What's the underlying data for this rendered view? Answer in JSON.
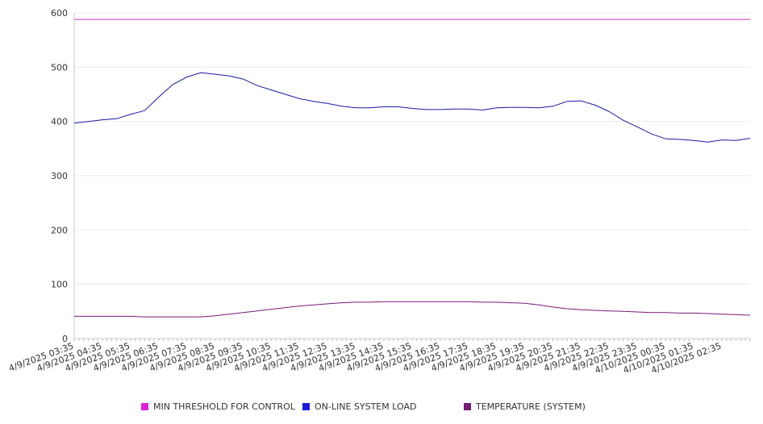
{
  "chart_data": {
    "type": "line",
    "title": "",
    "xlabel": "",
    "ylabel": "",
    "ylim": [
      0,
      600
    ],
    "yticks": [
      0,
      100,
      200,
      300,
      400,
      500,
      600
    ],
    "grid": true,
    "legend_position": "bottom",
    "xtick_labels": [
      "4/9/2025 03:35",
      "4/9/2025 04:35",
      "4/9/2025 05:35",
      "4/9/2025 06:35",
      "4/9/2025 07:35",
      "4/9/2025 08:35",
      "4/9/2025 09:35",
      "4/9/2025 10:35",
      "4/9/2025 11:35",
      "4/9/2025 12:35",
      "4/9/2025 13:35",
      "4/9/2025 14:35",
      "4/9/2025 15:35",
      "4/9/2025 16:35",
      "4/9/2025 17:35",
      "4/9/2025 18:35",
      "4/9/2025 19:35",
      "4/9/2025 20:35",
      "4/9/2025 21:35",
      "4/9/2025 22:35",
      "4/9/2025 23:35",
      "4/10/2025 00:35",
      "4/10/2025 01:35",
      "4/10/2025 02:35"
    ],
    "x_hours": [
      0,
      0.5,
      1,
      1.5,
      2,
      2.5,
      3,
      3.5,
      4,
      4.5,
      5,
      5.5,
      6,
      6.5,
      7,
      7.5,
      8,
      8.5,
      9,
      9.5,
      10,
      10.5,
      11,
      11.5,
      12,
      12.5,
      13,
      13.5,
      14,
      14.5,
      15,
      15.5,
      16,
      16.5,
      17,
      17.5,
      18,
      18.5,
      19,
      19.5,
      20,
      20.5,
      21,
      21.5,
      22,
      22.5,
      23,
      23.5,
      24
    ],
    "series": [
      {
        "name": "MIN THRESHOLD FOR CONTROL",
        "color": "#cc33cc",
        "values": [
          588,
          588,
          588,
          588,
          588,
          588,
          588,
          588,
          588,
          588,
          588,
          588,
          588,
          588,
          588,
          588,
          588,
          588,
          588,
          588,
          588,
          588,
          588,
          588,
          588,
          588,
          588,
          588,
          588,
          588,
          588,
          588,
          588,
          588,
          588,
          588,
          588,
          588,
          588,
          588,
          588,
          588,
          588,
          588,
          588,
          588,
          588,
          588,
          588
        ]
      },
      {
        "name": "ON-LINE SYSTEM LOAD",
        "color": "#1a1aaa",
        "values": [
          397,
          400,
          403,
          405,
          413,
          420,
          445,
          468,
          482,
          490,
          487,
          484,
          478,
          466,
          458,
          450,
          442,
          437,
          433,
          428,
          425,
          425,
          427,
          427,
          424,
          422,
          422,
          423,
          423,
          421,
          425,
          426,
          426,
          425,
          428,
          437,
          438,
          430,
          418,
          402,
          390,
          377,
          368,
          367,
          365,
          362,
          366,
          365,
          369
        ]
      },
      {
        "name": "TEMPERATURE (SYSTEM)",
        "color": "#7a1a7a",
        "values": [
          41,
          41,
          41,
          41,
          41,
          40,
          40,
          40,
          40,
          40,
          42,
          45,
          48,
          51,
          54,
          57,
          60,
          62,
          64,
          66,
          67,
          67,
          68,
          68,
          68,
          68,
          68,
          68,
          68,
          67,
          67,
          66,
          65,
          62,
          58,
          55,
          53,
          52,
          51,
          50,
          49,
          48,
          48,
          47,
          47,
          46,
          45,
          44,
          43
        ]
      }
    ]
  }
}
